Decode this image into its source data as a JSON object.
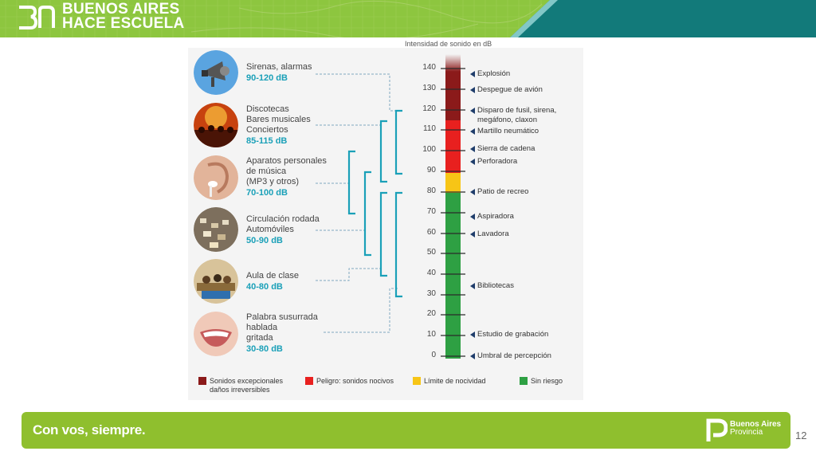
{
  "header": {
    "brand_line1": "BUENOS AIRES",
    "brand_line2": "HACE ESCUELA",
    "logo_icon": "ba-monogram-logo",
    "colors": {
      "green": "#8dc63f",
      "teal": "#127a7a"
    }
  },
  "diagram": {
    "scale_title": "Intensidad de sonido en dB",
    "ticks": [
      "140",
      "130",
      "120",
      "110",
      "100",
      "90",
      "80",
      "70",
      "60",
      "50",
      "40",
      "30",
      "20",
      "10",
      "0"
    ],
    "sources": [
      {
        "label": "Explosión"
      },
      {
        "label": "Despegue de avión"
      },
      {
        "label": "Disparo de fusil, sirena,\nmegáfono, claxon"
      },
      {
        "label": "Martillo neumático"
      },
      {
        "label": "Sierra de cadena"
      },
      {
        "label": "Perforadora"
      },
      {
        "label": "Patio de recreo"
      },
      {
        "label": "Aspiradora"
      },
      {
        "label": "Lavadora"
      },
      {
        "label": "Bibliotecas"
      },
      {
        "label": "Estudio de grabación"
      },
      {
        "label": "Umbral de percepción"
      }
    ],
    "items": [
      {
        "label": "Sirenas, alarmas",
        "range": "90-120 dB",
        "icon": "megaphone-icon"
      },
      {
        "label": "Discotecas\nBares musicales\nConciertos",
        "range": "85-115 dB",
        "icon": "concert-crowd-icon"
      },
      {
        "label": "Aparatos personales\nde música\n(MP3 y otros)",
        "range": "70-100 dB",
        "icon": "ear-earbud-icon"
      },
      {
        "label": "Circulación rodada\nAutomóviles",
        "range": "50-90 dB",
        "icon": "traffic-cars-icon"
      },
      {
        "label": "Aula de clase",
        "range": "40-80 dB",
        "icon": "classroom-icon"
      },
      {
        "label": "Palabra susurrada\nhablada\ngritada",
        "range": "30-80 dB",
        "icon": "mouth-smile-icon"
      }
    ],
    "legend": [
      {
        "label": "Sonidos excepcionales\ndaños irreversibles",
        "color": "#8b1a1a"
      },
      {
        "label": "Peligro: sonidos nocivos",
        "color": "#e8201f"
      },
      {
        "label": "Límite de nocividad",
        "color": "#f7c516"
      },
      {
        "label": "Sin riesgo",
        "color": "#2ea043"
      }
    ]
  },
  "footer": {
    "slogan": "Con vos, siempre.",
    "logo_line1": "Buenos Aires",
    "logo_line2": "Provincia",
    "logo_icon": "provincia-p-logo"
  },
  "page_number": "12"
}
